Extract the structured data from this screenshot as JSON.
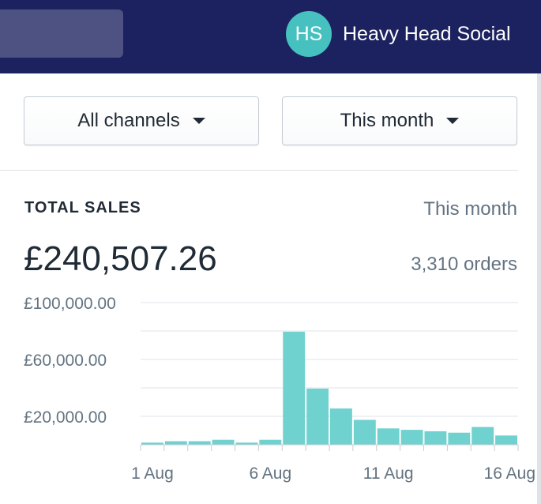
{
  "header": {
    "avatar_initials": "HS",
    "store_name": "Heavy Head Social",
    "bar_color": "#1c2260",
    "avatar_color": "#47c1bf"
  },
  "filters": {
    "channel": "All channels",
    "period": "This month"
  },
  "card": {
    "title": "TOTAL SALES",
    "period": "This month",
    "total": "£240,507.26",
    "orders": "3,310 orders"
  },
  "chart_data": {
    "type": "bar",
    "bar_color": "#6fd2ce",
    "x": [
      "1 Aug",
      "2 Aug",
      "3 Aug",
      "4 Aug",
      "5 Aug",
      "6 Aug",
      "7 Aug",
      "8 Aug",
      "9 Aug",
      "10 Aug",
      "11 Aug",
      "12 Aug",
      "13 Aug",
      "14 Aug",
      "15 Aug",
      "16 Aug"
    ],
    "values": [
      1500,
      2500,
      2500,
      3500,
      1500,
      3500,
      79500,
      39500,
      25500,
      17500,
      11500,
      10500,
      9500,
      8500,
      12500,
      6500
    ],
    "ylim": [
      0,
      100000
    ],
    "y_gridlines": [
      20000,
      40000,
      60000,
      80000,
      100000
    ],
    "y_tick_labels": [
      {
        "value": 100000,
        "label": "£100,000.00"
      },
      {
        "value": 60000,
        "label": "£60,000.00"
      },
      {
        "value": 20000,
        "label": "£20,000.00"
      }
    ],
    "x_tick_labels": [
      "1 Aug",
      "6 Aug",
      "11 Aug",
      "16 Aug"
    ],
    "grid": true
  }
}
